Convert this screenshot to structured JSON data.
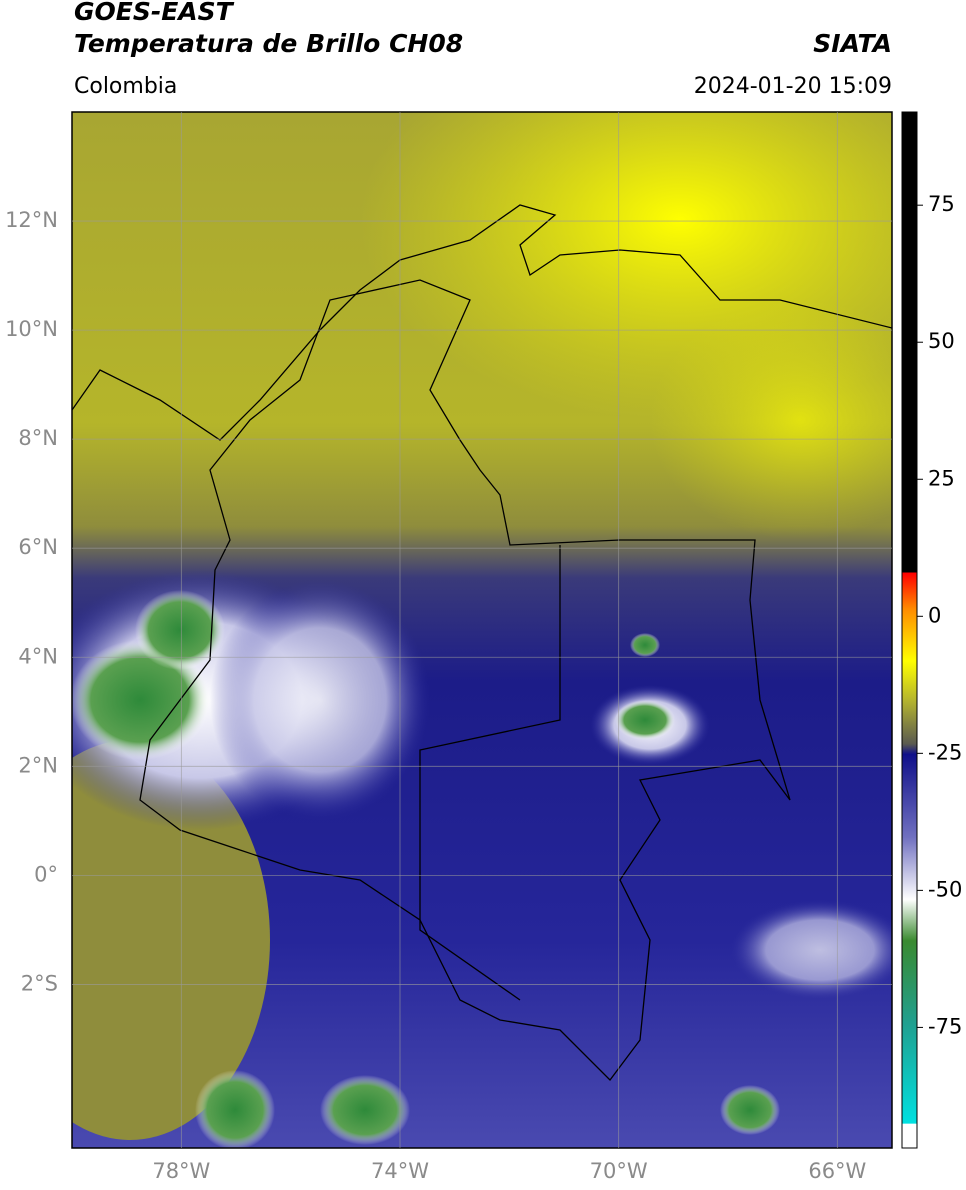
{
  "header": {
    "title": "GOES-EAST",
    "subtitle": "Temperatura de Brillo CH08",
    "source": "SIATA",
    "region": "Colombia",
    "datetime": "2024-01-20 15:09"
  },
  "map": {
    "xlim": [
      -80,
      -65
    ],
    "ylim": [
      -5,
      14
    ],
    "grid": true,
    "xticks": [
      {
        "value": -78,
        "label": "78°W"
      },
      {
        "value": -74,
        "label": "74°W"
      },
      {
        "value": -70,
        "label": "70°W"
      },
      {
        "value": -66,
        "label": "66°W"
      }
    ],
    "yticks": [
      {
        "value": 12,
        "label": "12°N"
      },
      {
        "value": 10,
        "label": "10°N"
      },
      {
        "value": 8,
        "label": "8°N"
      },
      {
        "value": 6,
        "label": "6°N"
      },
      {
        "value": 4,
        "label": "4°N"
      },
      {
        "value": 2,
        "label": "2°N"
      },
      {
        "value": 0,
        "label": "0°"
      },
      {
        "value": -2,
        "label": "2°S"
      }
    ]
  },
  "colorbar": {
    "lim": [
      -97,
      92
    ],
    "ticks": [
      75,
      50,
      25,
      0,
      -25,
      -50,
      -75
    ]
  }
}
